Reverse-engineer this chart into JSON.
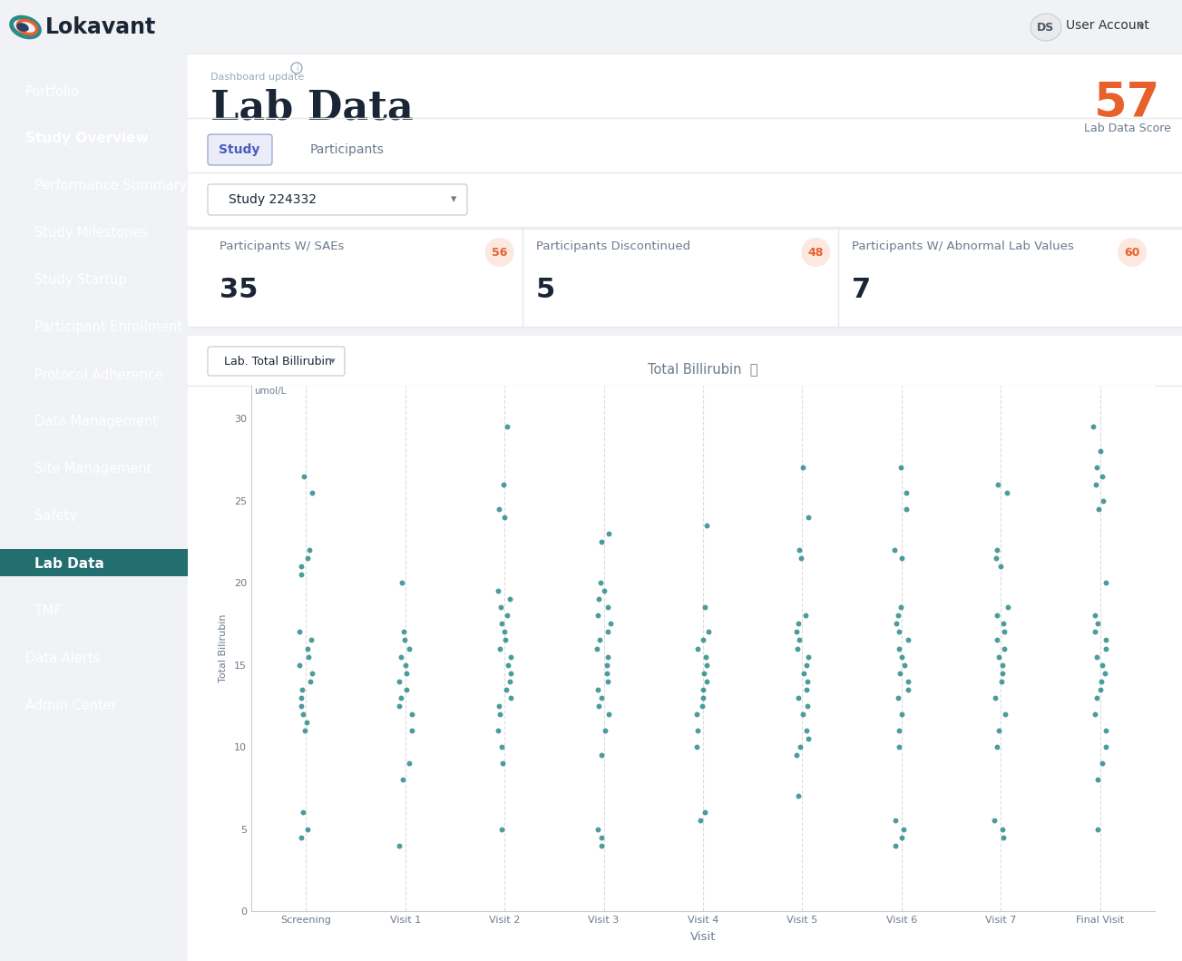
{
  "sidebar_bg": "#2d8a8c",
  "sidebar_highlight_bg": "#236e6f",
  "sidebar_items": [
    {
      "label": "Portfolio",
      "bold": false,
      "highlight": false,
      "indent": false
    },
    {
      "label": "Study Overview",
      "bold": true,
      "highlight": false,
      "indent": false
    },
    {
      "label": "Performance Summary",
      "bold": false,
      "highlight": false,
      "indent": true
    },
    {
      "label": "Study Milestones",
      "bold": false,
      "highlight": false,
      "indent": true
    },
    {
      "label": "Study Startup",
      "bold": false,
      "highlight": false,
      "indent": true
    },
    {
      "label": "Participant Enrollment",
      "bold": false,
      "highlight": false,
      "indent": true
    },
    {
      "label": "Protocol Adherence",
      "bold": false,
      "highlight": false,
      "indent": true
    },
    {
      "label": "Data Management",
      "bold": false,
      "highlight": false,
      "indent": true
    },
    {
      "label": "Site Management",
      "bold": false,
      "highlight": false,
      "indent": true
    },
    {
      "label": "Safety",
      "bold": false,
      "highlight": false,
      "indent": true
    },
    {
      "label": "Lab Data",
      "bold": true,
      "highlight": true,
      "indent": true
    },
    {
      "label": "TMF",
      "bold": false,
      "highlight": false,
      "indent": true
    },
    {
      "label": "Data Alerts",
      "bold": false,
      "highlight": false,
      "indent": false
    },
    {
      "label": "Admin Center",
      "bold": false,
      "highlight": false,
      "indent": false
    }
  ],
  "header_logo_text": "Lokavant",
  "header_user": "User Account",
  "header_user_initials": "DS",
  "page_title": "Lab Data",
  "page_subtitle": "Dashboard update",
  "score_value": "57",
  "score_label": "Lab Data Score",
  "score_color": "#e8602c",
  "tab_study": "Study",
  "tab_participants": "Participants",
  "dropdown_label": "Study 224332",
  "stat_cards": [
    {
      "label": "Participants W/ SAEs",
      "badge": "56",
      "value": "35"
    },
    {
      "label": "Participants Discontinued",
      "badge": "48",
      "value": "5"
    },
    {
      "label": "Participants W/ Abnormal Lab Values",
      "badge": "60",
      "value": "7"
    }
  ],
  "badge_color": "#e8602c",
  "badge_bg": "#fde8e0",
  "chart_dropdown": "Lab. Total Billirubin",
  "chart_title": "Total Billirubin",
  "chart_ylabel": "Total Bilirubin",
  "chart_yunits": "umol/L",
  "chart_xlabel": "Visit",
  "chart_ylim": [
    0,
    32
  ],
  "chart_yticks": [
    0,
    5,
    10,
    15,
    20,
    25,
    30
  ],
  "chart_dot_color": "#2d8a8c",
  "chart_dot_alpha": 0.85,
  "chart_dot_size": 18,
  "visits": [
    "Screening",
    "Visit 1",
    "Visit 2",
    "Visit 3",
    "Visit 4",
    "Visit 5",
    "Visit 6",
    "Visit 7",
    "Final Visit"
  ],
  "scatter_data": {
    "Screening": [
      26.5,
      25.5,
      22,
      21.5,
      21,
      20.5,
      17,
      16.5,
      16,
      15.5,
      15,
      14.5,
      14,
      13.5,
      13,
      12.5,
      12,
      11.5,
      11,
      6,
      5,
      4.5
    ],
    "Visit 1": [
      20,
      17,
      16.5,
      16,
      15.5,
      15,
      14.5,
      14,
      13.5,
      13,
      12.5,
      12,
      11,
      9,
      8,
      4
    ],
    "Visit 2": [
      29.5,
      26,
      24.5,
      24,
      19.5,
      19,
      18.5,
      18,
      17.5,
      17,
      16.5,
      16,
      15.5,
      15,
      14.5,
      14,
      13.5,
      13,
      12.5,
      12,
      11,
      10,
      9,
      5
    ],
    "Visit 3": [
      23,
      22.5,
      20,
      19.5,
      19,
      18.5,
      18,
      17.5,
      17,
      16.5,
      16,
      15.5,
      15,
      14.5,
      14,
      13.5,
      13,
      12.5,
      12,
      11,
      9.5,
      5,
      4.5,
      4
    ],
    "Visit 4": [
      23.5,
      18.5,
      17,
      16.5,
      16,
      15.5,
      15,
      14.5,
      14,
      13.5,
      13,
      12.5,
      12,
      11,
      10,
      6,
      5.5
    ],
    "Visit 5": [
      27,
      24,
      22,
      21.5,
      18,
      17.5,
      17,
      16.5,
      16,
      15.5,
      15,
      14.5,
      14,
      13.5,
      13,
      12.5,
      12,
      11,
      10.5,
      10,
      9.5,
      7
    ],
    "Visit 6": [
      27,
      25.5,
      24.5,
      22,
      21.5,
      18.5,
      18,
      17.5,
      17,
      16.5,
      16,
      15.5,
      15,
      14.5,
      14,
      13.5,
      13,
      12,
      11,
      10,
      5.5,
      5,
      4.5,
      4
    ],
    "Visit 7": [
      26,
      25.5,
      22,
      21.5,
      21,
      18.5,
      18,
      17.5,
      17,
      16.5,
      16,
      15.5,
      15,
      14.5,
      14,
      13,
      12,
      11,
      10,
      5.5,
      5,
      4.5
    ],
    "Final Visit": [
      29.5,
      28,
      27,
      26.5,
      26,
      25,
      24.5,
      20,
      18,
      17.5,
      17,
      16.5,
      16,
      15.5,
      15,
      14.5,
      14,
      13.5,
      13,
      12,
      11,
      10,
      9,
      8,
      5
    ]
  },
  "bg_color": "#f0f2f5",
  "panel_bg": "#ffffff",
  "text_dark": "#1a2535",
  "text_mid": "#6b7a8d",
  "text_light": "#9aaabb"
}
